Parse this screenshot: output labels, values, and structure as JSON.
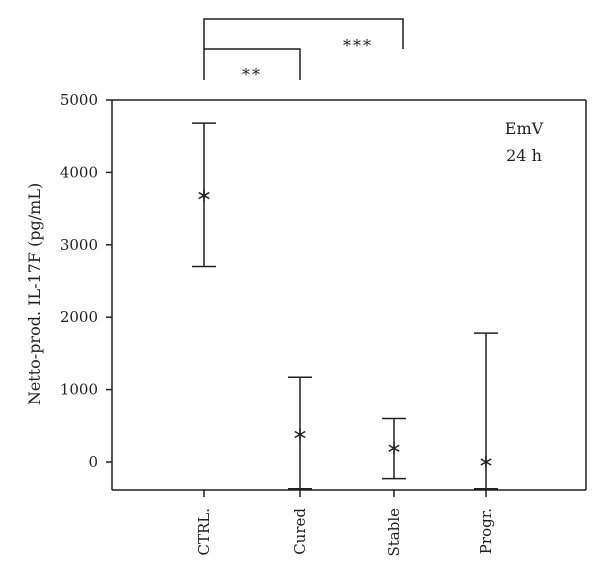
{
  "chart_data": {
    "type": "scatter",
    "ylabel": "Netto-prod. IL-17F (pg/mL)",
    "xlabel": "",
    "ylim": [
      -350,
      5000
    ],
    "yticks": [
      0,
      1000,
      2000,
      3000,
      4000,
      5000
    ],
    "categories": [
      "CTRL.",
      "Cured",
      "Stable",
      "Progr."
    ],
    "points": [
      {
        "category": "CTRL.",
        "median": 3680,
        "low": 2700,
        "high": 4680
      },
      {
        "category": "Cured",
        "median": 380,
        "low": -370,
        "high": 1170
      },
      {
        "category": "Stable",
        "median": 190,
        "low": -230,
        "high": 600
      },
      {
        "category": "Progr.",
        "median": 0,
        "low": -370,
        "high": 1780
      }
    ],
    "annotations": [
      "EmV",
      "24 h"
    ],
    "significance": [
      {
        "from": "CTRL.",
        "to": "Cured",
        "label": "**"
      },
      {
        "from": "CTRL.",
        "to": "Progr.",
        "label": "***"
      }
    ],
    "grid": false,
    "marker": "asterisk",
    "colors": {
      "ink": "#231f20"
    }
  }
}
